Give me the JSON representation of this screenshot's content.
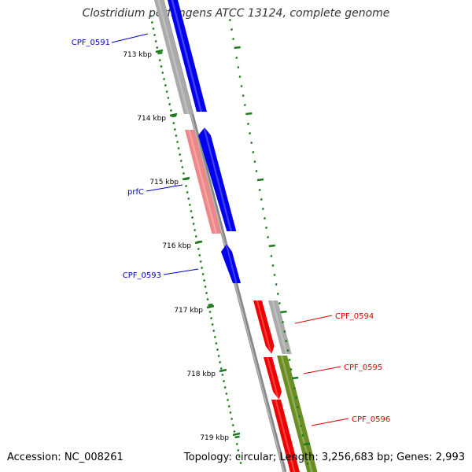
{
  "title": "Clostridium perfringens ATCC 13124, complete genome",
  "accession": "Accession: NC_008261",
  "summary": "Topology: circular; Length: 3,256,683 bp; Genes: 2,993",
  "colors": {
    "ruler": "#1e7a1e",
    "backbone": "#888888",
    "gene_blue": "#0000ee",
    "gene_red": "#ee0000",
    "gene_pink": "#ee8888",
    "gene_gray": "#aaaaaa",
    "gene_olive": "#6b8e23",
    "label_blue": "#0000cc",
    "label_red": "#dd0000"
  },
  "ruler_ticks": [
    "713 kbp",
    "714 kbp",
    "715 kbp",
    "716 kbp",
    "717 kbp",
    "718 kbp",
    "719 kbp"
  ],
  "gene_labels": [
    {
      "name": "CPF_0591",
      "color": "blue"
    },
    {
      "name": "prfC",
      "color": "blue"
    },
    {
      "name": "CPF_0593",
      "color": "blue"
    },
    {
      "name": "CPF_0594",
      "color": "red"
    },
    {
      "name": "CPF_0595",
      "color": "red"
    },
    {
      "name": "CPF_0596",
      "color": "red"
    }
  ]
}
